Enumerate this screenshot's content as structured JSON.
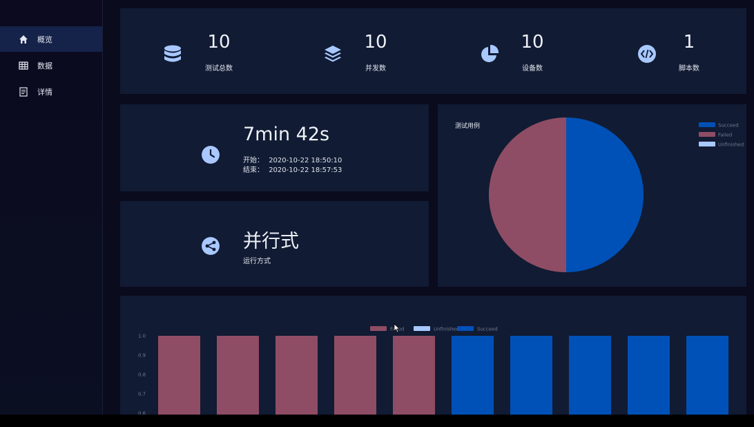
{
  "sidebar": {
    "items": [
      {
        "label": "概览",
        "icon": "home-icon",
        "active": true
      },
      {
        "label": "数据",
        "icon": "table-icon",
        "active": false
      },
      {
        "label": "详情",
        "icon": "document-icon",
        "active": false
      }
    ]
  },
  "stats": [
    {
      "value": "10",
      "label": "测试总数",
      "icon": "database-icon"
    },
    {
      "value": "10",
      "label": "并发数",
      "icon": "layers-icon"
    },
    {
      "value": "10",
      "label": "设备数",
      "icon": "pie-chart-icon"
    },
    {
      "value": "1",
      "label": "脚本数",
      "icon": "code-icon"
    }
  ],
  "duration": {
    "value": "7min 42s",
    "start_label": "开始：",
    "start": "2020-10-22 18:50:10",
    "end_label": "结束：",
    "end": "2020-10-22 18:57:53",
    "icon": "clock-icon"
  },
  "mode": {
    "value": "并行式",
    "label": "运行方式",
    "icon": "share-icon"
  },
  "colors": {
    "failed": "#8e4d64",
    "succeed": "#0051b7",
    "unfinished": "#a8c8ff",
    "panel": "#111b33"
  },
  "chart_data": [
    {
      "type": "pie",
      "title": "测试用例",
      "legend": [
        "Succeed",
        "Failed",
        "Unfinished"
      ],
      "legend_position": "top-right",
      "slices": [
        {
          "name": "Succeed",
          "value": 5,
          "color": "#0051b7"
        },
        {
          "name": "Failed",
          "value": 5,
          "color": "#8e4d64"
        },
        {
          "name": "Unfinished",
          "value": 0,
          "color": "#a8c8ff"
        }
      ]
    },
    {
      "type": "bar",
      "legend": [
        "Failed",
        "Unfinished",
        "Succeed"
      ],
      "legend_position": "top-center",
      "yticks": [
        "1.0",
        "0.9",
        "0.8",
        "0.7",
        "0.6"
      ],
      "ylim": [
        0,
        1
      ],
      "series": [
        {
          "name": "Failed",
          "color": "#8e4d64",
          "values": [
            1,
            1,
            1,
            1,
            1,
            0,
            0,
            0,
            0,
            0
          ]
        },
        {
          "name": "Unfinished",
          "color": "#a8c8ff",
          "values": [
            0,
            0,
            0,
            0,
            0,
            0,
            0,
            0,
            0,
            0
          ]
        },
        {
          "name": "Succeed",
          "color": "#0051b7",
          "values": [
            0,
            0,
            0,
            0,
            0,
            1,
            1,
            1,
            1,
            1
          ]
        }
      ]
    }
  ]
}
